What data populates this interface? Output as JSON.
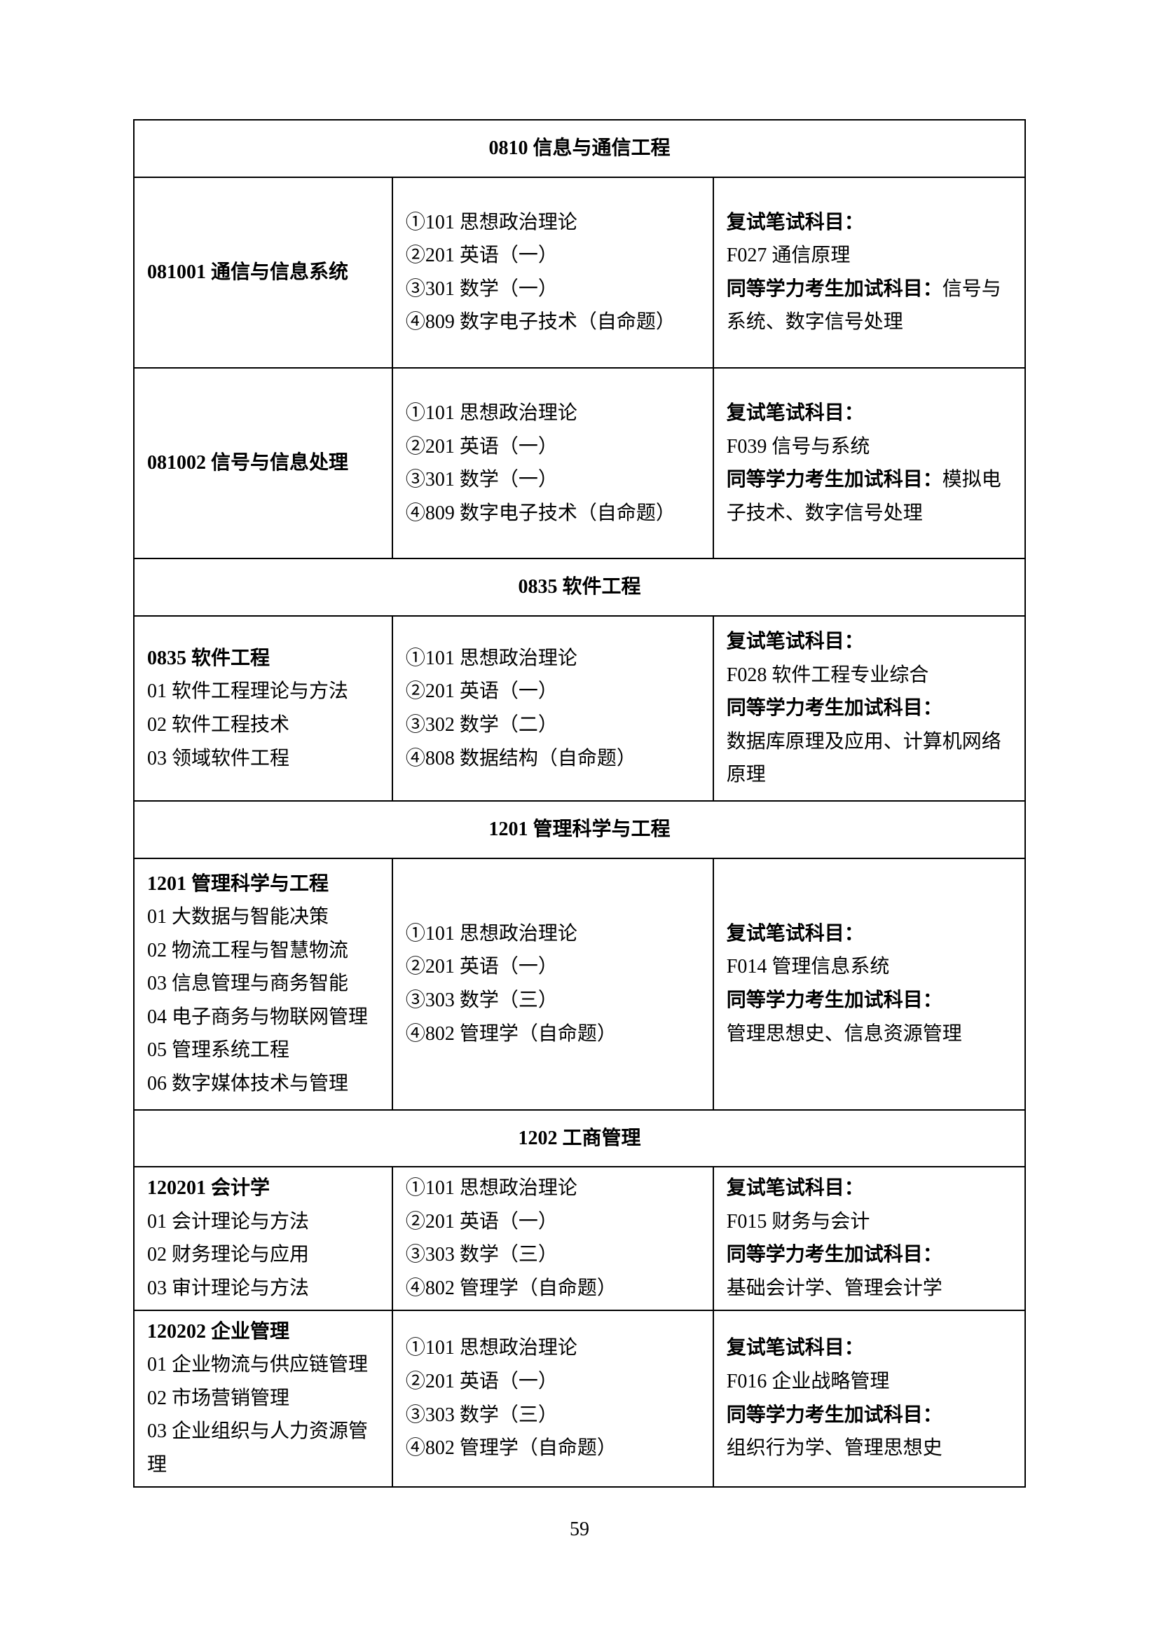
{
  "page_number": "59",
  "sections": [
    {
      "header": "0810 信息与通信工程",
      "rows": [
        {
          "class": "tall-row",
          "col1_bold": "081001 通信与信息系统",
          "col1_lines": [],
          "col2_lines": [
            "①101 思想政治理论",
            "②201 英语（一）",
            "③301 数学（一）",
            "④809 数字电子技术（自命题）"
          ],
          "col3_bold1": "复试笔试科目：",
          "col3_line1": "F027 通信原理",
          "col3_bold2": "同等学力考生加试科目：",
          "col3_line2_inline": "信号与系统、数字信号处理"
        },
        {
          "class": "tall-row",
          "col1_bold": "081002 信号与信息处理",
          "col1_lines": [],
          "col2_lines": [
            "①101 思想政治理论",
            "②201 英语（一）",
            "③301 数学（一）",
            "④809 数字电子技术（自命题）"
          ],
          "col3_bold1": "复试笔试科目：",
          "col3_line1": "F039 信号与系统",
          "col3_bold2": "同等学力考生加试科目：",
          "col3_line2_inline": "模拟电子技术、数字信号处理"
        }
      ]
    },
    {
      "header": "0835 软件工程",
      "rows": [
        {
          "class": "",
          "col1_bold": "0835 软件工程",
          "col1_lines": [
            "01 软件工程理论与方法",
            "02 软件工程技术",
            "03 领域软件工程"
          ],
          "col2_lines": [
            "①101 思想政治理论",
            "②201 英语（一）",
            "③302 数学（二）",
            "④808 数据结构（自命题）"
          ],
          "col3_bold1": "复试笔试科目：",
          "col3_line1": "F028 软件工程专业综合",
          "col3_bold2": "同等学力考生加试科目：",
          "col3_line2_inline": "",
          "col3_line2_block": "数据库原理及应用、计算机网络原理"
        }
      ]
    },
    {
      "header": "1201 管理科学与工程",
      "rows": [
        {
          "class": "",
          "col1_bold": "1201 管理科学与工程",
          "col1_lines": [
            "01 大数据与智能决策",
            "02 物流工程与智慧物流",
            "03 信息管理与商务智能",
            "04 电子商务与物联网管理",
            "05 管理系统工程",
            "06 数字媒体技术与管理"
          ],
          "col2_lines": [
            "①101 思想政治理论",
            "②201 英语（一）",
            "③303 数学（三）",
            "④802 管理学（自命题）"
          ],
          "col3_bold1": "复试笔试科目：",
          "col3_line1": "F014 管理信息系统",
          "col3_bold2": "同等学力考生加试科目：",
          "col3_line2_inline": "",
          "col3_line2_block": "管理思想史、信息资源管理"
        }
      ]
    },
    {
      "header": "1202 工商管理",
      "rows": [
        {
          "class": "compact-row",
          "col1_bold": "120201 会计学",
          "col1_lines": [
            "01 会计理论与方法",
            "02 财务理论与应用",
            "03 审计理论与方法"
          ],
          "col2_lines": [
            "①101 思想政治理论",
            "②201 英语（一）",
            "③303 数学（三）",
            "④802 管理学（自命题）"
          ],
          "col3_bold1": "复试笔试科目：",
          "col3_line1": "F015 财务与会计",
          "col3_bold2": "同等学力考生加试科目：",
          "col3_line2_inline": "",
          "col3_line2_block": "基础会计学、管理会计学"
        },
        {
          "class": "compact-row",
          "col1_bold": "120202 企业管理",
          "col1_lines": [
            "01 企业物流与供应链管理",
            "02 市场营销管理",
            "03 企业组织与人力资源管理"
          ],
          "col2_lines": [
            "①101 思想政治理论",
            "②201 英语（一）",
            "③303 数学（三）",
            "④802 管理学（自命题）"
          ],
          "col3_bold1": "复试笔试科目：",
          "col3_line1": "F016 企业战略管理",
          "col3_bold2": "同等学力考生加试科目：",
          "col3_line2_inline": "",
          "col3_line2_block": "组织行为学、管理思想史"
        }
      ]
    }
  ]
}
